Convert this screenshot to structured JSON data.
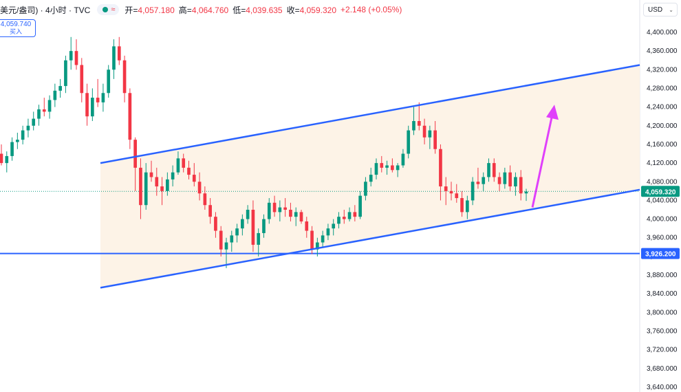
{
  "header": {
    "title": "美元/盎司) · 4小时 · TVC",
    "status_wave": "≈",
    "open_label": "开=",
    "open_value": "4,057.180",
    "high_label": "高=",
    "high_value": "4,064.760",
    "low_label": "低=",
    "low_value": "4,039.635",
    "close_label": "收=",
    "close_value": "4,059.320",
    "change": "+2.148 (+0.05%)"
  },
  "buy_button": {
    "price": "4,059.740",
    "label": "买入"
  },
  "currency": {
    "label": "USD"
  },
  "colors": {
    "up": "#089981",
    "down": "#f23645",
    "channel": "#2962ff",
    "channel_fill": "#fdf3e7",
    "arrow": "#e040fb",
    "price_tag": "#089981",
    "level_tag": "#2962ff"
  },
  "chart_data": {
    "type": "candlestick",
    "title": "",
    "ylim": [
      3620,
      4440
    ],
    "y_ticks": [
      "4,400.000",
      "4,360.000",
      "4,320.000",
      "4,280.000",
      "4,240.000",
      "4,200.000",
      "4,160.000",
      "4,120.000",
      "4,080.000",
      "4,040.000",
      "4,000.000",
      "3,960.000",
      "3,920.000",
      "3,880.000",
      "3,840.000",
      "3,800.000",
      "3,760.000",
      "3,720.000",
      "3,680.000",
      "3,640.000"
    ],
    "current_price": {
      "value": 4059.32,
      "label": "4,059.320"
    },
    "horizontal_level": {
      "value": 3926.2,
      "label": "3,926.200"
    },
    "channel": {
      "upper": [
        [
          0.145,
          4120
        ],
        [
          0.935,
          4330
        ]
      ],
      "lower": [
        [
          0.145,
          3853
        ],
        [
          0.935,
          4063
        ]
      ],
      "note": "x as fraction of bar index range"
    },
    "arrow": {
      "from": 4025,
      "to": 4245
    },
    "candles": [
      [
        4140,
        4160,
        4115,
        4120
      ],
      [
        4120,
        4145,
        4100,
        4135
      ],
      [
        4135,
        4175,
        4125,
        4165
      ],
      [
        4165,
        4185,
        4150,
        4170
      ],
      [
        4170,
        4200,
        4160,
        4190
      ],
      [
        4190,
        4215,
        4175,
        4200
      ],
      [
        4200,
        4230,
        4190,
        4215
      ],
      [
        4215,
        4245,
        4200,
        4235
      ],
      [
        4235,
        4260,
        4220,
        4230
      ],
      [
        4230,
        4265,
        4215,
        4255
      ],
      [
        4255,
        4290,
        4240,
        4275
      ],
      [
        4275,
        4300,
        4260,
        4285
      ],
      [
        4285,
        4350,
        4270,
        4340
      ],
      [
        4340,
        4390,
        4320,
        4360
      ],
      [
        4360,
        4385,
        4320,
        4330
      ],
      [
        4330,
        4345,
        4250,
        4270
      ],
      [
        4270,
        4290,
        4200,
        4220
      ],
      [
        4220,
        4280,
        4210,
        4260
      ],
      [
        4260,
        4300,
        4240,
        4250
      ],
      [
        4250,
        4290,
        4230,
        4270
      ],
      [
        4270,
        4330,
        4260,
        4320
      ],
      [
        4320,
        4385,
        4300,
        4370
      ],
      [
        4370,
        4390,
        4330,
        4340
      ],
      [
        4340,
        4350,
        4250,
        4270
      ],
      [
        4270,
        4280,
        4150,
        4170
      ],
      [
        4170,
        4175,
        4060,
        4110
      ],
      [
        4110,
        4130,
        4000,
        4030
      ],
      [
        4030,
        4120,
        4020,
        4100
      ],
      [
        4100,
        4125,
        4080,
        4090
      ],
      [
        4090,
        4110,
        4050,
        4070
      ],
      [
        4070,
        4090,
        4030,
        4060
      ],
      [
        4060,
        4100,
        4050,
        4085
      ],
      [
        4085,
        4115,
        4070,
        4100
      ],
      [
        4100,
        4145,
        4095,
        4130
      ],
      [
        4130,
        4140,
        4100,
        4110
      ],
      [
        4110,
        4125,
        4085,
        4095
      ],
      [
        4095,
        4120,
        4070,
        4080
      ],
      [
        4080,
        4100,
        4040,
        4055
      ],
      [
        4055,
        4070,
        4020,
        4030
      ],
      [
        4030,
        4045,
        3990,
        4005
      ],
      [
        4005,
        4015,
        3960,
        3975
      ],
      [
        3975,
        3985,
        3920,
        3935
      ],
      [
        3935,
        3960,
        3895,
        3950
      ],
      [
        3950,
        3975,
        3930,
        3965
      ],
      [
        3965,
        3990,
        3950,
        3980
      ],
      [
        3980,
        4010,
        3965,
        4000
      ],
      [
        4000,
        4030,
        3990,
        4020
      ],
      [
        4020,
        4040,
        3930,
        3945
      ],
      [
        3945,
        3980,
        3920,
        3970
      ],
      [
        3970,
        4010,
        3960,
        4000
      ],
      [
        4000,
        4045,
        3990,
        4035
      ],
      [
        4035,
        4050,
        4005,
        4015
      ],
      [
        4015,
        4040,
        3995,
        4025
      ],
      [
        4025,
        4045,
        4005,
        4020
      ],
      [
        4020,
        4035,
        3995,
        4005
      ],
      [
        4005,
        4025,
        3985,
        4015
      ],
      [
        4015,
        4020,
        3990,
        3995
      ],
      [
        3995,
        4005,
        3960,
        3975
      ],
      [
        3975,
        3985,
        3925,
        3935
      ],
      [
        3935,
        3960,
        3920,
        3950
      ],
      [
        3950,
        3975,
        3940,
        3965
      ],
      [
        3965,
        3990,
        3955,
        3980
      ],
      [
        3980,
        4000,
        3965,
        3990
      ],
      [
        3990,
        4015,
        3980,
        4005
      ],
      [
        4005,
        4020,
        3990,
        4000
      ],
      [
        4000,
        4025,
        3995,
        4015
      ],
      [
        4015,
        4030,
        3995,
        4005
      ],
      [
        4005,
        4060,
        4000,
        4050
      ],
      [
        4050,
        4090,
        4040,
        4080
      ],
      [
        4080,
        4110,
        4070,
        4095
      ],
      [
        4095,
        4130,
        4085,
        4120
      ],
      [
        4120,
        4135,
        4100,
        4110
      ],
      [
        4110,
        4125,
        4095,
        4115
      ],
      [
        4115,
        4130,
        4100,
        4105
      ],
      [
        4105,
        4120,
        4090,
        4115
      ],
      [
        4115,
        4150,
        4110,
        4140
      ],
      [
        4140,
        4200,
        4130,
        4190
      ],
      [
        4190,
        4240,
        4180,
        4210
      ],
      [
        4210,
        4250,
        4190,
        4200
      ],
      [
        4200,
        4215,
        4160,
        4175
      ],
      [
        4175,
        4200,
        4150,
        4190
      ],
      [
        4190,
        4210,
        4140,
        4150
      ],
      [
        4150,
        4160,
        4040,
        4070
      ],
      [
        4070,
        4090,
        4030,
        4060
      ],
      [
        4060,
        4080,
        4040,
        4055
      ],
      [
        4055,
        4075,
        4035,
        4045
      ],
      [
        4045,
        4060,
        4005,
        4015
      ],
      [
        4015,
        4050,
        4000,
        4040
      ],
      [
        4040,
        4090,
        4030,
        4080
      ],
      [
        4080,
        4110,
        4065,
        4075
      ],
      [
        4075,
        4100,
        4060,
        4090
      ],
      [
        4090,
        4130,
        4080,
        4120
      ],
      [
        4120,
        4130,
        4080,
        4090
      ],
      [
        4090,
        4100,
        4060,
        4075
      ],
      [
        4075,
        4110,
        4065,
        4100
      ],
      [
        4100,
        4115,
        4060,
        4070
      ],
      [
        4070,
        4100,
        4050,
        4090
      ],
      [
        4090,
        4105,
        4040,
        4055
      ],
      [
        4055,
        4065,
        4039,
        4059
      ]
    ]
  }
}
